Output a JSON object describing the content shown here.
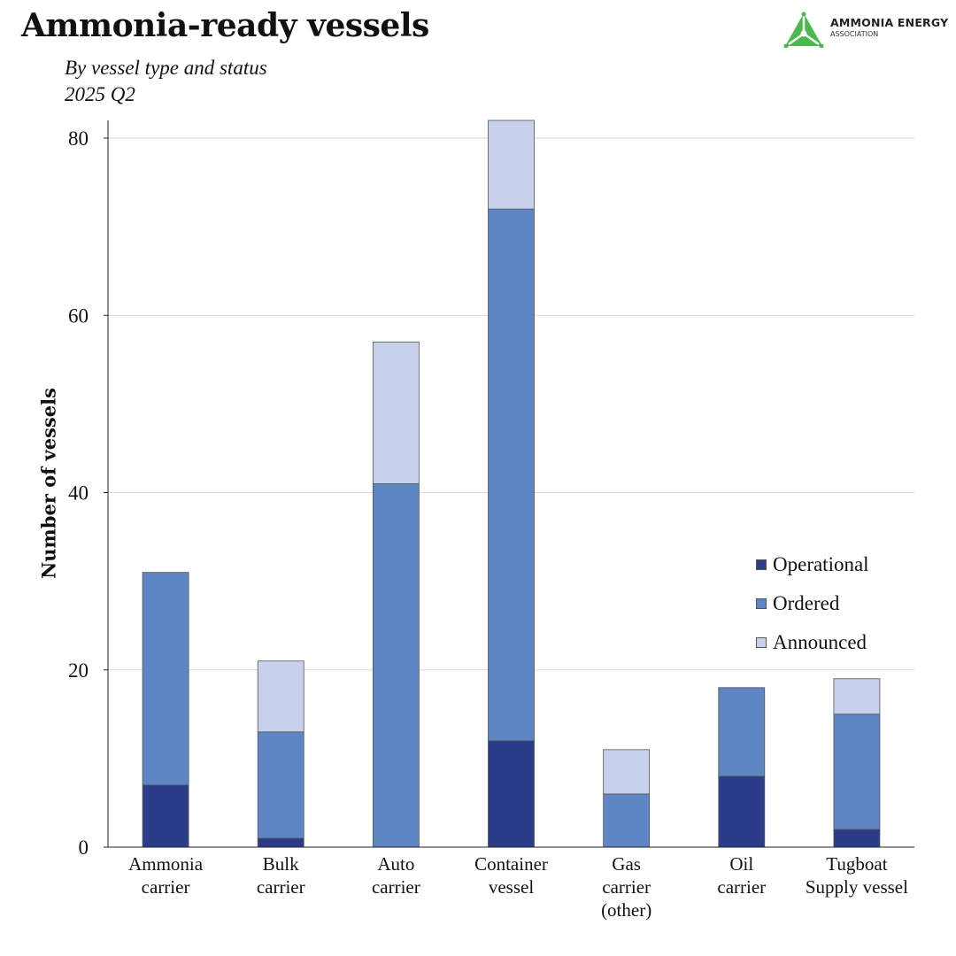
{
  "header": {
    "title": "Ammonia-ready vessels",
    "subtitle_line1": "By vessel type and status",
    "subtitle_line2": "2025 Q2"
  },
  "logo": {
    "name": "AMMONIA ENERGY",
    "sub": "ASSOCIATION",
    "color": "#4cb84c"
  },
  "chart_data": {
    "type": "bar",
    "stacked": true,
    "categories": [
      [
        "Ammonia",
        "carrier"
      ],
      [
        "Bulk",
        "carrier"
      ],
      [
        "Auto",
        "carrier"
      ],
      [
        "Container",
        "vessel"
      ],
      [
        "Gas",
        "carrier",
        "(other)"
      ],
      [
        "Oil",
        "carrier"
      ],
      [
        "Tugboat",
        "Supply vessel"
      ]
    ],
    "series": [
      {
        "name": "Operational",
        "color": "#2b3d8a",
        "values": [
          7,
          1,
          0,
          12,
          0,
          8,
          2
        ]
      },
      {
        "name": "Ordered",
        "color": "#5e86c4",
        "values": [
          24,
          12,
          41,
          60,
          6,
          10,
          13
        ]
      },
      {
        "name": "Announced",
        "color": "#c8d1ec",
        "values": [
          0,
          8,
          16,
          10,
          5,
          0,
          4
        ]
      }
    ],
    "title": "Ammonia-ready vessels",
    "xlabel": "",
    "ylabel": "Number of vessels",
    "ylim": [
      0,
      82
    ],
    "yticks": [
      0,
      20,
      40,
      60,
      80
    ],
    "grid": true,
    "legend_position": "right"
  }
}
